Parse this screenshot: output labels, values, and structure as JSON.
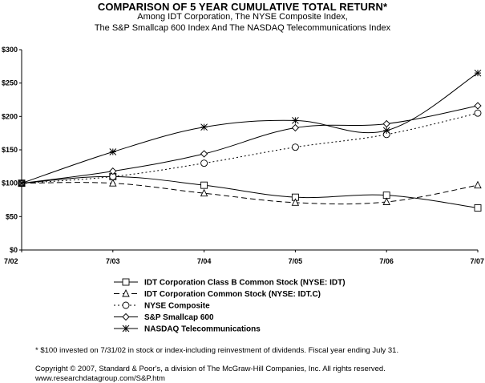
{
  "header": {
    "title": "COMPARISON OF 5 YEAR CUMULATIVE TOTAL RETURN*",
    "subtitle_line1": "Among IDT Corporation, The NYSE Composite Index,",
    "subtitle_line2": "The S&P Smallcap 600 Index And The NASDAQ Telecommunications Index"
  },
  "chart_data": {
    "type": "line",
    "categories": [
      "7/02",
      "7/03",
      "7/04",
      "7/05",
      "7/06",
      "7/07"
    ],
    "y_ticks": [
      "$0",
      "$50",
      "$100",
      "$150",
      "$200",
      "$250",
      "$300"
    ],
    "ylim": [
      0,
      300
    ],
    "grid": false,
    "legend_position": "bottom",
    "series": [
      {
        "name": "IDT Corporation Class B Common Stock (NYSE: IDT)",
        "marker": "square",
        "dash": "solid",
        "values": [
          100,
          110,
          97,
          79,
          82,
          63
        ]
      },
      {
        "name": "IDT Corporation Common Stock (NYSE: IDT.C)",
        "marker": "triangle",
        "dash": "long-dash",
        "values": [
          100,
          100,
          85,
          71,
          72,
          97
        ]
      },
      {
        "name": "NYSE Composite",
        "marker": "circle",
        "dash": "dotted",
        "values": [
          100,
          110,
          130,
          154,
          173,
          205
        ]
      },
      {
        "name": "S&P Smallcap 600",
        "marker": "diamond",
        "dash": "solid",
        "values": [
          100,
          118,
          144,
          183,
          189,
          216
        ]
      },
      {
        "name": "NASDAQ Telecommunications",
        "marker": "asterisk",
        "dash": "solid",
        "values": [
          100,
          147,
          184,
          194,
          179,
          265
        ]
      }
    ]
  },
  "footnotes": {
    "note": "* $100 invested on 7/31/02 in stock or index-including reinvestment of dividends.  Fiscal year ending July 31.",
    "copyright": "Copyright © 2007, Standard & Poor's, a division of The McGraw-Hill Companies, Inc. All rights reserved.",
    "url": "www.researchdatagroup.com/S&P.htm"
  }
}
